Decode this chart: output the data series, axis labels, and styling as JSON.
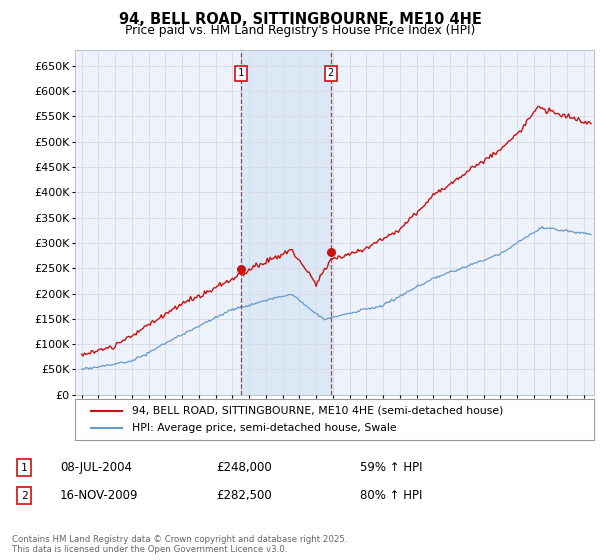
{
  "title": "94, BELL ROAD, SITTINGBOURNE, ME10 4HE",
  "subtitle": "Price paid vs. HM Land Registry's House Price Index (HPI)",
  "ylim": [
    0,
    680000
  ],
  "yticks": [
    0,
    50000,
    100000,
    150000,
    200000,
    250000,
    300000,
    350000,
    400000,
    450000,
    500000,
    550000,
    600000,
    650000
  ],
  "xlim_start": 1994.6,
  "xlim_end": 2025.6,
  "fig_bg_color": "#ffffff",
  "plot_bg_color": "#eef2fa",
  "grid_color": "#d8dce8",
  "red_line_color": "#cc1111",
  "blue_line_color": "#6699cc",
  "shade_color": "#dce8f5",
  "marker1_x": 2004.52,
  "marker1_y": 248000,
  "marker2_x": 2009.88,
  "marker2_y": 282500,
  "marker1_date": "08-JUL-2004",
  "marker1_price": "£248,000",
  "marker1_hpi": "59% ↑ HPI",
  "marker2_date": "16-NOV-2009",
  "marker2_price": "£282,500",
  "marker2_hpi": "80% ↑ HPI",
  "legend_label1": "94, BELL ROAD, SITTINGBOURNE, ME10 4HE (semi-detached house)",
  "legend_label2": "HPI: Average price, semi-detached house, Swale",
  "footer": "Contains HM Land Registry data © Crown copyright and database right 2025.\nThis data is licensed under the Open Government Licence v3.0."
}
